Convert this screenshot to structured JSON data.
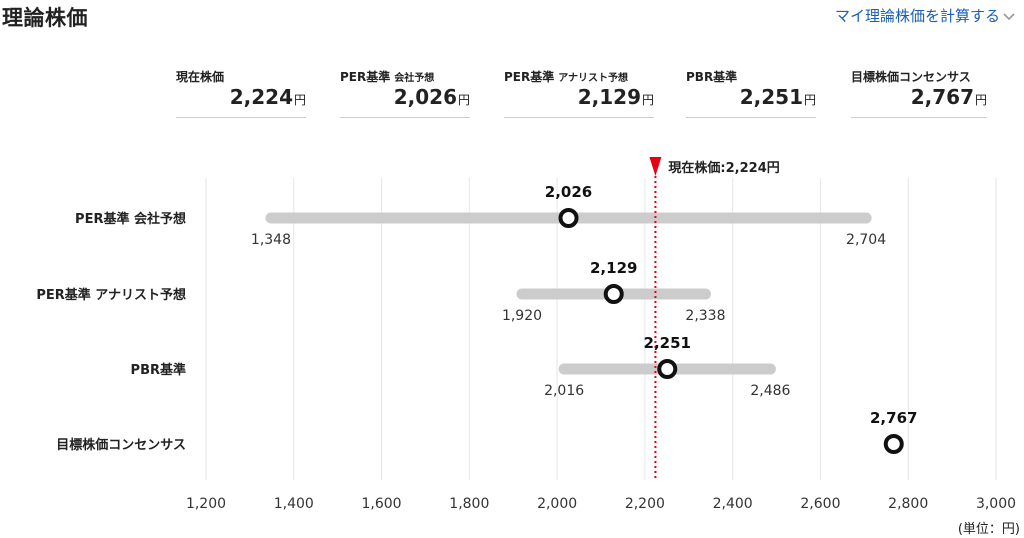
{
  "header": {
    "title": "理論株価",
    "link_label": "マイ理論株価を計算する",
    "link_icon": "chevron-down-icon"
  },
  "summary": [
    {
      "label": "現在株価",
      "sub": "",
      "value": "2,224",
      "unit": "円"
    },
    {
      "label": "PER基準",
      "sub": "会社予想",
      "value": "2,026",
      "unit": "円"
    },
    {
      "label": "PER基準",
      "sub": "アナリスト予想",
      "value": "2,129",
      "unit": "円"
    },
    {
      "label": "PBR基準",
      "sub": "",
      "value": "2,251",
      "unit": "円"
    },
    {
      "label": "目標株価コンセンサス",
      "sub": "",
      "value": "2,767",
      "unit": "円"
    }
  ],
  "chart_data": {
    "type": "range",
    "xlim": [
      1200,
      3000
    ],
    "x_ticks": [
      1200,
      1400,
      1600,
      1800,
      2000,
      2200,
      2400,
      2600,
      2800,
      3000
    ],
    "x_tick_labels": [
      "1,200",
      "1,400",
      "1,600",
      "1,800",
      "2,000",
      "2,200",
      "2,400",
      "2,600",
      "2,800",
      "3,000"
    ],
    "unit_note": "(単位：円)",
    "grid": "vertical",
    "reference_line": {
      "value": 2224,
      "label": "現在株価:2,224円",
      "color": "#e60012"
    },
    "rows": [
      {
        "label": "PER基準 会社予想",
        "value": 2026,
        "value_label": "2,026",
        "low": 1348,
        "low_label": "1,348",
        "high": 2704,
        "high_label": "2,704"
      },
      {
        "label": "PER基準 アナリスト予想",
        "value": 2129,
        "value_label": "2,129",
        "low": 1920,
        "low_label": "1,920",
        "high": 2338,
        "high_label": "2,338"
      },
      {
        "label": "PBR基準",
        "value": 2251,
        "value_label": "2,251",
        "low": 2016,
        "low_label": "2,016",
        "high": 2486,
        "high_label": "2,486"
      },
      {
        "label": "目標株価コンセンサス",
        "value": 2767,
        "value_label": "2,767",
        "low": null,
        "low_label": "",
        "high": null,
        "high_label": ""
      }
    ],
    "colors": {
      "range_bar": "#cccccc",
      "marker": "#111111",
      "grid": "#e6e6e6"
    }
  }
}
